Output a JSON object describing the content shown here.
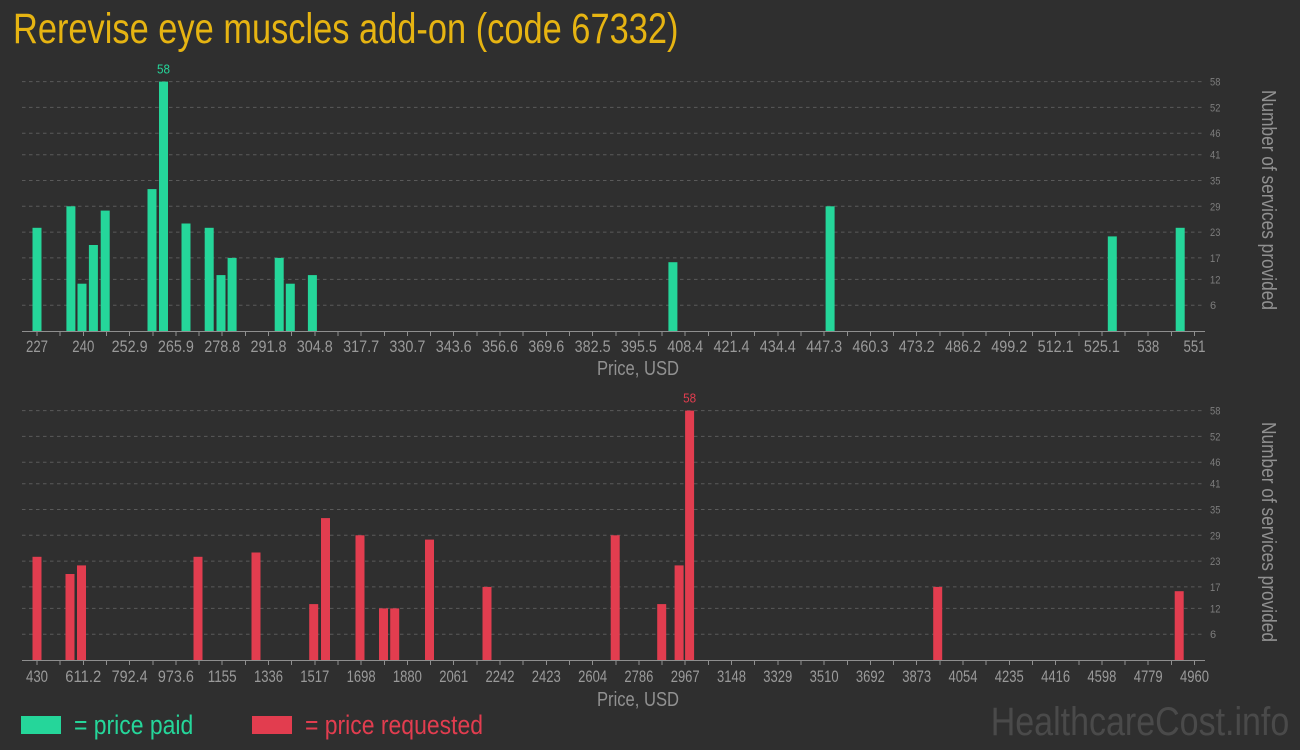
{
  "title": "Rerevise eye muscles add-on (code 67332)",
  "watermark": "HealthcareCost.info",
  "colors": {
    "background": "#2f2f2f",
    "title": "#e6b412",
    "price_paid": "#25d69a",
    "price_requested": "#e23d4f",
    "watermark": "#4a4a4a",
    "grid": "#5a5a5a",
    "axis": "#8f8f8f",
    "tick_labels": "#9a9a9a"
  },
  "legend": [
    {
      "label": "= price paid",
      "color": "#25d69a"
    },
    {
      "label": "= price requested",
      "color": "#e23d4f"
    }
  ],
  "chart_data": [
    {
      "type": "bar",
      "name": "price paid",
      "color": "#25d69a",
      "title": "Rerevise eye muscles add-on (code 67332)",
      "xlabel": "Price, USD",
      "ylabel": "Number of services provided",
      "x_tick_labels": [
        "227",
        "240",
        "252.9",
        "265.9",
        "278.8",
        "291.8",
        "304.8",
        "317.7",
        "330.7",
        "343.6",
        "356.6",
        "369.6",
        "382.5",
        "395.5",
        "408.4",
        "421.4",
        "434.4",
        "447.3",
        "460.3",
        "473.2",
        "486.2",
        "499.2",
        "512.1",
        "525.1",
        "538",
        "551"
      ],
      "x_range": [
        227,
        551
      ],
      "y_ticks": [
        6,
        12,
        17,
        23,
        29,
        35,
        41,
        46,
        52,
        58
      ],
      "ylim": [
        0,
        61
      ],
      "grid": "dashed-horizontal",
      "annotated_max": 58,
      "bars": [
        {
          "price": 227.0,
          "count": 24
        },
        {
          "price": 236.5,
          "count": 29
        },
        {
          "price": 239.6,
          "count": 11
        },
        {
          "price": 242.8,
          "count": 20
        },
        {
          "price": 246.1,
          "count": 28
        },
        {
          "price": 259.2,
          "count": 33
        },
        {
          "price": 262.4,
          "count": 58
        },
        {
          "price": 268.7,
          "count": 25
        },
        {
          "price": 275.2,
          "count": 24
        },
        {
          "price": 278.5,
          "count": 13
        },
        {
          "price": 281.6,
          "count": 17
        },
        {
          "price": 294.8,
          "count": 17
        },
        {
          "price": 297.9,
          "count": 11
        },
        {
          "price": 304.1,
          "count": 13
        },
        {
          "price": 405.0,
          "count": 16
        },
        {
          "price": 449.0,
          "count": 29
        },
        {
          "price": 528.0,
          "count": 22
        },
        {
          "price": 547.0,
          "count": 24
        }
      ]
    },
    {
      "type": "bar",
      "name": "price requested",
      "color": "#e23d4f",
      "title": "Rerevise eye muscles add-on (code 67332)",
      "xlabel": "Price, USD",
      "ylabel": "Number of services provided",
      "x_tick_labels": [
        "430",
        "611.2",
        "792.4",
        "973.6",
        "1155",
        "1336",
        "1517",
        "1698",
        "1880",
        "2061",
        "2242",
        "2423",
        "2604",
        "2786",
        "2967",
        "3148",
        "3329",
        "3510",
        "3692",
        "3873",
        "4054",
        "4235",
        "4416",
        "4598",
        "4779",
        "4960"
      ],
      "x_range": [
        430,
        4960
      ],
      "y_ticks": [
        6,
        12,
        17,
        23,
        29,
        35,
        41,
        46,
        52,
        58
      ],
      "ylim": [
        0,
        61
      ],
      "grid": "dashed-horizontal",
      "annotated_max": 58,
      "bars": [
        {
          "price": 430,
          "count": 24
        },
        {
          "price": 559,
          "count": 20
        },
        {
          "price": 604,
          "count": 22
        },
        {
          "price": 1060,
          "count": 24
        },
        {
          "price": 1287,
          "count": 25
        },
        {
          "price": 1513,
          "count": 13
        },
        {
          "price": 1559,
          "count": 33
        },
        {
          "price": 1694,
          "count": 29
        },
        {
          "price": 1786,
          "count": 12
        },
        {
          "price": 1830,
          "count": 12
        },
        {
          "price": 1966,
          "count": 28
        },
        {
          "price": 2191,
          "count": 17
        },
        {
          "price": 2693,
          "count": 29
        },
        {
          "price": 2875,
          "count": 13
        },
        {
          "price": 2943,
          "count": 22
        },
        {
          "price": 2984,
          "count": 58
        },
        {
          "price": 3955,
          "count": 17
        },
        {
          "price": 4900,
          "count": 16
        }
      ]
    }
  ]
}
